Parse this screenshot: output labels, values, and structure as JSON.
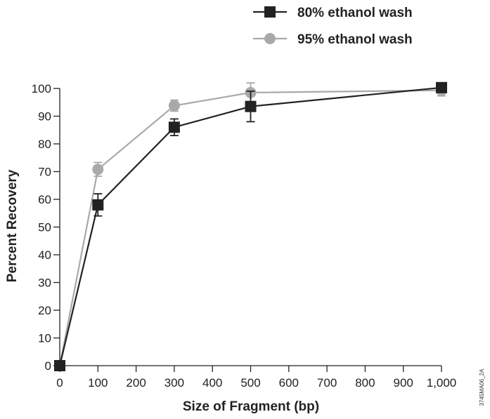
{
  "chart_data": {
    "type": "line",
    "xlabel": "Size of Fragment (bp)",
    "ylabel": "Percent Recovery",
    "x_ticks": [
      "0",
      "100",
      "200",
      "300",
      "400",
      "500",
      "600",
      "700",
      "800",
      "900",
      "1,000"
    ],
    "y_ticks": [
      "0",
      "10",
      "20",
      "30",
      "40",
      "50",
      "60",
      "70",
      "80",
      "90",
      "100"
    ],
    "x_tick_values": [
      0,
      100,
      200,
      300,
      400,
      500,
      600,
      700,
      800,
      900,
      1000
    ],
    "y_tick_values": [
      0,
      10,
      20,
      30,
      40,
      50,
      60,
      70,
      80,
      90,
      100
    ],
    "xlim": [
      0,
      1000
    ],
    "ylim": [
      0,
      100
    ],
    "grid": false,
    "legend_position": "top-right",
    "series": [
      {
        "name": "80% ethanol wash",
        "marker": "square",
        "color": "#222222",
        "x": [
          0,
          100,
          300,
          500,
          1000
        ],
        "y": [
          0,
          58,
          86,
          93.5,
          100.3
        ],
        "err": [
          0,
          4,
          3,
          5.5,
          0
        ]
      },
      {
        "name": "95% ethanol wash",
        "marker": "circle",
        "color": "#a9a9a9",
        "x": [
          0,
          100,
          300,
          500,
          1000
        ],
        "y": [
          0,
          70.8,
          93.8,
          98.5,
          99.3
        ],
        "err": [
          0,
          2.5,
          2,
          3.5,
          2
        ]
      }
    ]
  },
  "figure_code": "3745MA06_2A"
}
